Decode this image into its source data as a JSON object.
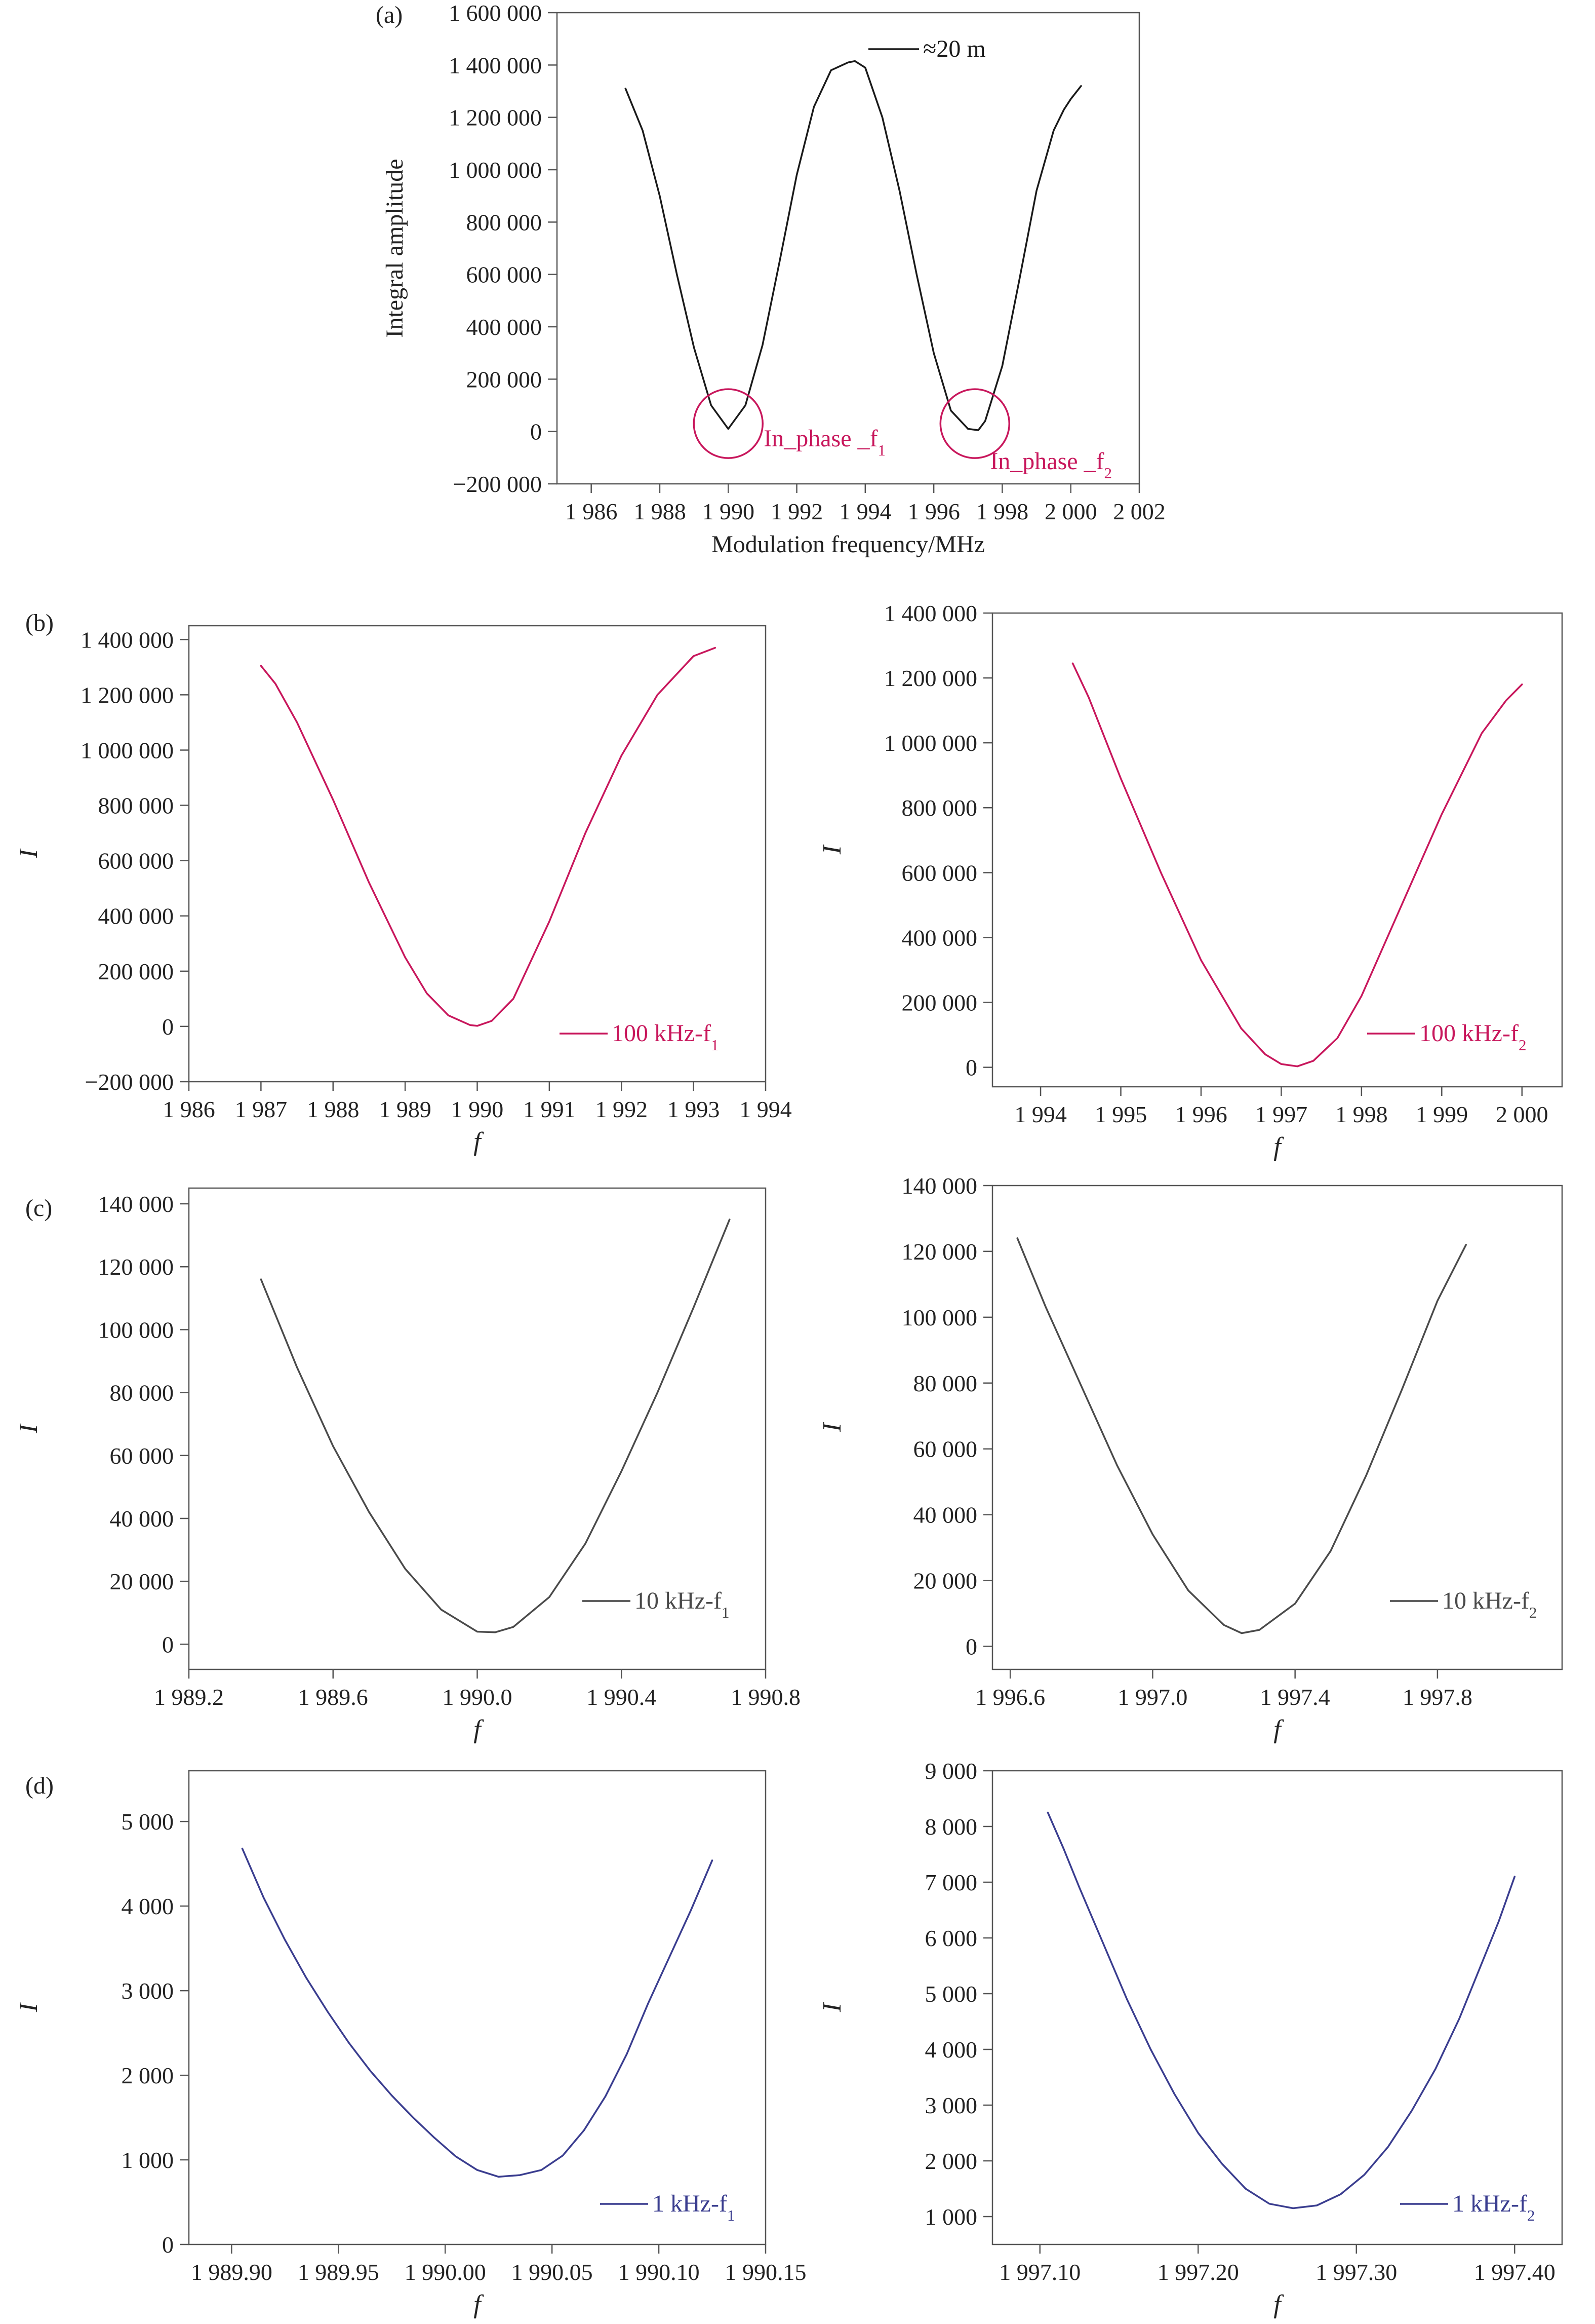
{
  "chart_data": [
    {
      "id": "a",
      "type": "line",
      "panel_label": "(a)",
      "xlabel": "Modulation frequency/MHz",
      "ylabel": "Integral amplitude",
      "xlim": [
        1985,
        2002
      ],
      "ylim": [
        -200000,
        1600000
      ],
      "xticks": [
        1986,
        1988,
        1990,
        1992,
        1994,
        1996,
        1998,
        2000,
        2002
      ],
      "xtick_labels": [
        "1 986",
        "1 988",
        "1 990",
        "1 992",
        "1 994",
        "1 996",
        "1 998",
        "2 000",
        "2 002"
      ],
      "yticks": [
        -200000,
        0,
        200000,
        400000,
        600000,
        800000,
        1000000,
        1200000,
        1400000,
        1600000
      ],
      "ytick_labels": [
        "−200 000",
        "0",
        "200 000",
        "400 000",
        "600 000",
        "800 000",
        "1 000 000",
        "1 200 000",
        "1 400 000",
        "1 600 000"
      ],
      "series": [
        {
          "name": "≈20 m",
          "color": "#1a1a1a",
          "x": [
            1987.0,
            1987.5,
            1988.0,
            1988.5,
            1989.0,
            1989.5,
            1990.0,
            1990.5,
            1991.0,
            1991.5,
            1992.0,
            1992.5,
            1993.0,
            1993.5,
            1993.7,
            1994.0,
            1994.5,
            1995.0,
            1995.5,
            1996.0,
            1996.5,
            1997.0,
            1997.3,
            1997.5,
            1998.0,
            1998.5,
            1999.0,
            1999.5,
            1999.8,
            2000.0,
            2000.3
          ],
          "y": [
            1310000,
            1150000,
            900000,
            600000,
            320000,
            100000,
            10000,
            100000,
            330000,
            650000,
            980000,
            1240000,
            1380000,
            1410000,
            1415000,
            1390000,
            1200000,
            920000,
            600000,
            300000,
            80000,
            10000,
            5000,
            40000,
            250000,
            580000,
            920000,
            1150000,
            1230000,
            1270000,
            1320000
          ]
        }
      ],
      "annotations": [
        {
          "text": "In_phase _f",
          "sub": "1",
          "at_x": 1990.0,
          "at_y": 30000
        },
        {
          "text": "In_phase _f",
          "sub": "2",
          "at_x": 1997.2,
          "at_y": 30000
        }
      ]
    },
    {
      "id": "b1",
      "type": "line",
      "panel_label": "(b)",
      "xlabel": "f",
      "ylabel": "I",
      "xlim": [
        1986,
        1994
      ],
      "ylim": [
        -200000,
        1450000
      ],
      "xticks": [
        1986,
        1987,
        1988,
        1989,
        1990,
        1991,
        1992,
        1993,
        1994
      ],
      "xtick_labels": [
        "1 986",
        "1 987",
        "1 988",
        "1 989",
        "1 990",
        "1 991",
        "1 992",
        "1 993",
        "1 994"
      ],
      "yticks": [
        -200000,
        0,
        200000,
        400000,
        600000,
        800000,
        1000000,
        1200000,
        1400000
      ],
      "ytick_labels": [
        "−200 000",
        "0",
        "200 000",
        "400 000",
        "600 000",
        "800 000",
        "1 000 000",
        "1 200 000",
        "1 400 000"
      ],
      "series": [
        {
          "name": "100 kHz-f",
          "sub": "1",
          "color": "#c8175c",
          "x": [
            1987.0,
            1987.2,
            1987.5,
            1988.0,
            1988.5,
            1989.0,
            1989.3,
            1989.6,
            1989.9,
            1990.0,
            1990.2,
            1990.5,
            1991.0,
            1991.5,
            1992.0,
            1992.5,
            1993.0,
            1993.3
          ],
          "y": [
            1305000,
            1240000,
            1100000,
            820000,
            520000,
            250000,
            120000,
            40000,
            5000,
            2000,
            20000,
            100000,
            380000,
            700000,
            980000,
            1200000,
            1340000,
            1370000
          ]
        }
      ]
    },
    {
      "id": "b2",
      "type": "line",
      "panel_label": "",
      "xlabel": "f",
      "ylabel": "I",
      "xlim": [
        1993.4,
        2000.5
      ],
      "ylim": [
        -60000,
        1400000
      ],
      "xticks": [
        1994,
        1995,
        1996,
        1997,
        1998,
        1999,
        2000
      ],
      "xtick_labels": [
        "1 994",
        "1 995",
        "1 996",
        "1 997",
        "1 998",
        "1 999",
        "2 000"
      ],
      "yticks": [
        0,
        200000,
        400000,
        600000,
        800000,
        1000000,
        1200000,
        1400000
      ],
      "ytick_labels": [
        "0",
        "200 000",
        "400 000",
        "600 000",
        "800 000",
        "1 000 000",
        "1 200 000",
        "1 400 000"
      ],
      "series": [
        {
          "name": "100 kHz-f",
          "sub": "2",
          "color": "#c8175c",
          "x": [
            1994.4,
            1994.6,
            1995.0,
            1995.5,
            1996.0,
            1996.5,
            1996.8,
            1997.0,
            1997.2,
            1997.4,
            1997.7,
            1998.0,
            1998.5,
            1999.0,
            1999.5,
            1999.8,
            2000.0
          ],
          "y": [
            1245000,
            1140000,
            890000,
            600000,
            330000,
            120000,
            40000,
            10000,
            3000,
            20000,
            90000,
            220000,
            500000,
            780000,
            1030000,
            1130000,
            1180000
          ]
        }
      ]
    },
    {
      "id": "c1",
      "type": "line",
      "panel_label": "(c)",
      "xlabel": "f",
      "ylabel": "I",
      "xlim": [
        1989.2,
        1990.8
      ],
      "ylim": [
        -8000,
        145000
      ],
      "xticks": [
        1989.2,
        1989.6,
        1990.0,
        1990.4,
        1990.8
      ],
      "xtick_labels": [
        "1 989.2",
        "1 989.6",
        "1 990.0",
        "1 990.4",
        "1 990.8"
      ],
      "yticks": [
        0,
        20000,
        40000,
        60000,
        80000,
        100000,
        120000,
        140000
      ],
      "ytick_labels": [
        "0",
        "20 000",
        "40 000",
        "60 000",
        "80 000",
        "100 000",
        "120 000",
        "140 000"
      ],
      "series": [
        {
          "name": "10 kHz-f",
          "sub": "1",
          "color": "#4a4a4a",
          "x": [
            1989.4,
            1989.45,
            1989.5,
            1989.6,
            1989.7,
            1989.8,
            1989.9,
            1990.0,
            1990.05,
            1990.1,
            1990.2,
            1990.3,
            1990.4,
            1990.5,
            1990.6,
            1990.7
          ],
          "y": [
            116000,
            102000,
            88000,
            63000,
            42000,
            24000,
            11000,
            4000,
            3800,
            5500,
            15000,
            32000,
            55000,
            80000,
            107000,
            135000
          ]
        }
      ]
    },
    {
      "id": "c2",
      "type": "line",
      "panel_label": "",
      "xlabel": "f",
      "ylabel": "I",
      "xlim": [
        1996.55,
        1998.15
      ],
      "ylim": [
        -7000,
        140000
      ],
      "xticks": [
        1996.6,
        1997.0,
        1997.4,
        1997.8
      ],
      "xtick_labels": [
        "1 996.6",
        "1 997.0",
        "1 997.4",
        "1 997.8"
      ],
      "yticks": [
        0,
        20000,
        40000,
        60000,
        80000,
        100000,
        120000,
        140000
      ],
      "ytick_labels": [
        "0",
        "20 000",
        "40 000",
        "60 000",
        "80 000",
        "100 000",
        "120 000",
        "140 000"
      ],
      "series": [
        {
          "name": "10 kHz-f",
          "sub": "2",
          "color": "#4a4a4a",
          "x": [
            1996.62,
            1996.7,
            1996.8,
            1996.9,
            1997.0,
            1997.1,
            1997.2,
            1997.25,
            1997.3,
            1997.4,
            1997.5,
            1997.6,
            1997.7,
            1997.8,
            1997.88
          ],
          "y": [
            124000,
            103000,
            79000,
            55000,
            34000,
            17000,
            6500,
            4000,
            5000,
            13000,
            29000,
            52000,
            78000,
            105000,
            122000
          ]
        }
      ]
    },
    {
      "id": "d1",
      "type": "line",
      "panel_label": "(d)",
      "xlabel": "f",
      "ylabel": "I",
      "xlim": [
        1989.88,
        1990.15
      ],
      "ylim": [
        0,
        5600
      ],
      "xticks": [
        1989.9,
        1989.95,
        1990.0,
        1990.05,
        1990.1,
        1990.15
      ],
      "xtick_labels": [
        "1 989.90",
        "1 989.95",
        "1 990.00",
        "1 990.05",
        "1 990.10",
        "1 990.15"
      ],
      "yticks": [
        0,
        1000,
        2000,
        3000,
        4000,
        5000
      ],
      "ytick_labels": [
        "0",
        "1 000",
        "2 000",
        "3 000",
        "4 000",
        "5 000"
      ],
      "series": [
        {
          "name": "1 kHz-f",
          "sub": "1",
          "color": "#3a3d8f",
          "x": [
            1989.905,
            1989.915,
            1989.925,
            1989.935,
            1989.945,
            1989.955,
            1989.965,
            1989.975,
            1989.985,
            1989.995,
            1990.005,
            1990.015,
            1990.025,
            1990.035,
            1990.045,
            1990.055,
            1990.065,
            1990.075,
            1990.085,
            1990.095,
            1990.105,
            1990.115,
            1990.125
          ],
          "y": [
            4680,
            4100,
            3600,
            3150,
            2750,
            2380,
            2050,
            1760,
            1500,
            1260,
            1040,
            880,
            800,
            820,
            880,
            1050,
            1350,
            1750,
            2250,
            2850,
            3400,
            3950,
            4540
          ]
        }
      ]
    },
    {
      "id": "d2",
      "type": "line",
      "panel_label": "",
      "xlabel": "f",
      "ylabel": "I",
      "xlim": [
        1997.07,
        1997.43
      ],
      "ylim": [
        500,
        9000
      ],
      "xticks": [
        1997.1,
        1997.2,
        1997.3,
        1997.4
      ],
      "xtick_labels": [
        "1 997.10",
        "1 997.20",
        "1 997.30",
        "1 997.40"
      ],
      "yticks": [
        1000,
        2000,
        3000,
        4000,
        5000,
        6000,
        7000,
        8000,
        9000
      ],
      "ytick_labels": [
        "1 000",
        "2 000",
        "3 000",
        "4 000",
        "5 000",
        "6 000",
        "7 000",
        "8 000",
        "9 000"
      ],
      "series": [
        {
          "name": "1 kHz-f",
          "sub": "2",
          "color": "#3a3d8f",
          "x": [
            1997.105,
            1997.115,
            1997.125,
            1997.14,
            1997.155,
            1997.17,
            1997.185,
            1997.2,
            1997.215,
            1997.23,
            1997.245,
            1997.26,
            1997.275,
            1997.29,
            1997.305,
            1997.32,
            1997.335,
            1997.35,
            1997.365,
            1997.38,
            1997.39,
            1997.4
          ],
          "y": [
            8250,
            7600,
            6900,
            5900,
            4900,
            4000,
            3200,
            2500,
            1950,
            1500,
            1230,
            1150,
            1200,
            1400,
            1750,
            2250,
            2900,
            3650,
            4550,
            5600,
            6300,
            7100
          ]
        }
      ]
    }
  ]
}
